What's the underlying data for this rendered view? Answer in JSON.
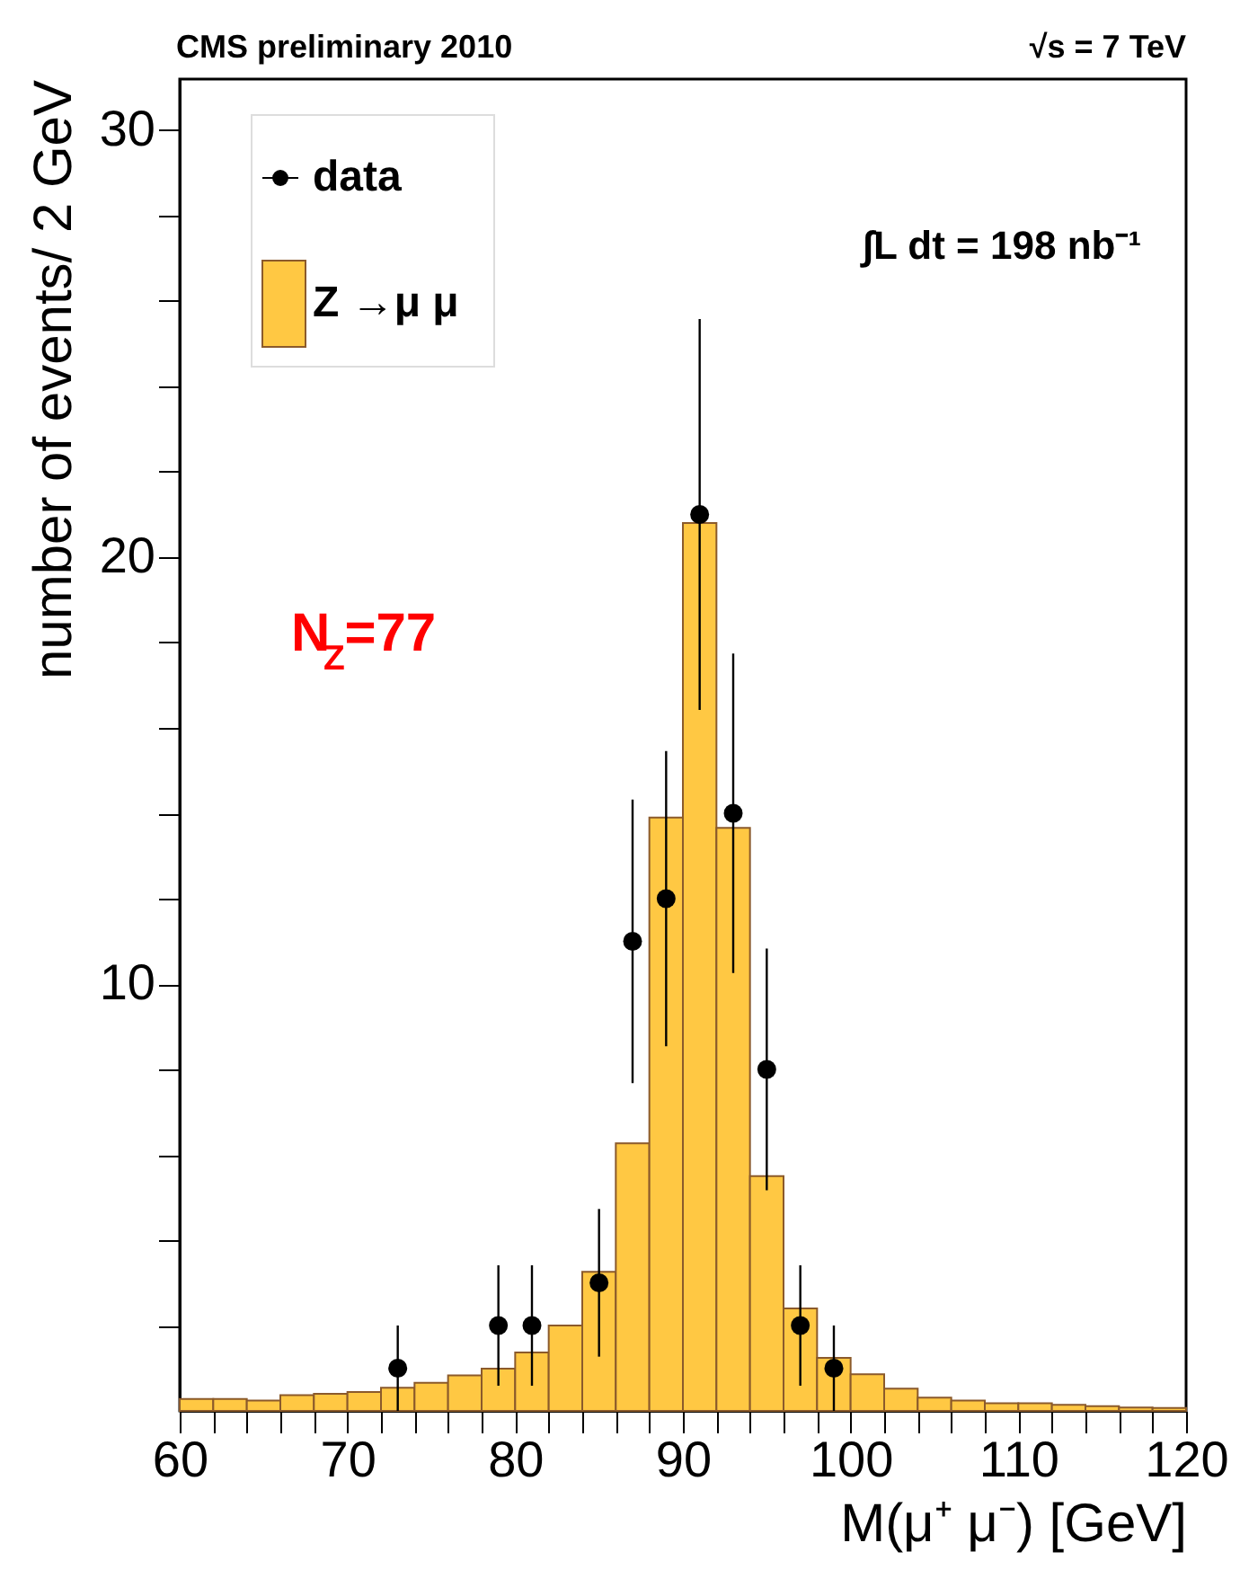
{
  "chart_data": {
    "type": "histogram",
    "title": "CMS preliminary 2010",
    "xlabel": "M(μ⁺ μ⁻) [GeV]",
    "ylabel": "number of events/ 2 GeV",
    "annotations": [
      "√s = 7 TeV",
      "∫L dt = 198 nb⁻¹",
      "N$_{Z}$=77"
    ],
    "bins": [
      60,
      62,
      64,
      66,
      68,
      70,
      72,
      74,
      76,
      78,
      80,
      82,
      84,
      86,
      88,
      90,
      92,
      94,
      96,
      98,
      100,
      102,
      104,
      106,
      108,
      110,
      112,
      114,
      116,
      118,
      120
    ],
    "series": [
      {
        "name": "data",
        "type": "scatter",
        "color": "#000000",
        "x": [
          73,
          79,
          81,
          85,
          87,
          89,
          91,
          93,
          95,
          97,
          99
        ],
        "values": [
          1,
          2,
          2,
          3,
          11,
          12,
          21,
          14,
          8,
          2,
          1
        ],
        "errors": [
          1,
          1.41,
          1.41,
          1.73,
          3.32,
          3.46,
          4.58,
          3.74,
          2.83,
          1.41,
          1
        ]
      },
      {
        "name": "Z →μ μ",
        "color": "#ffc843",
        "values": [
          0.28,
          0.28,
          0.24,
          0.37,
          0.4,
          0.44,
          0.54,
          0.66,
          0.83,
          0.99,
          1.37,
          2.0,
          3.26,
          6.27,
          13.9,
          20.8,
          13.66,
          5.5,
          2.4,
          1.24,
          0.86,
          0.52,
          0.31,
          0.24,
          0.18,
          0.18,
          0.14,
          0.11,
          0.08,
          0.07
        ]
      }
    ],
    "xlim": [
      60,
      120
    ],
    "ylim": [
      0,
      31.2
    ],
    "xticks": [
      60,
      {
        "value": 62,
        "label": null
      },
      {
        "value": 64,
        "label": null
      },
      {
        "value": 66,
        "label": null
      },
      {
        "value": 68,
        "label": null
      },
      70,
      {
        "value": 72,
        "label": null
      },
      {
        "value": 74,
        "label": null
      },
      {
        "value": 76,
        "label": null
      },
      {
        "value": 78,
        "label": null
      },
      80,
      {
        "value": 82,
        "label": null
      },
      {
        "value": 84,
        "label": null
      },
      {
        "value": 86,
        "label": null
      },
      {
        "value": 88,
        "label": null
      },
      90,
      {
        "value": 92,
        "label": null
      },
      {
        "value": 94,
        "label": null
      },
      {
        "value": 96,
        "label": null
      },
      {
        "value": 98,
        "label": null
      },
      100,
      {
        "value": 102,
        "label": null
      },
      {
        "value": 104,
        "label": null
      },
      {
        "value": 106,
        "label": null
      },
      {
        "value": 108,
        "label": null
      },
      110,
      {
        "value": 112,
        "label": null
      },
      {
        "value": 114,
        "label": null
      },
      {
        "value": 116,
        "label": null
      },
      {
        "value": 118,
        "label": null
      },
      120
    ],
    "yticks": [
      {
        "value": 2,
        "label": null
      },
      {
        "value": 4,
        "label": null
      },
      {
        "value": 6,
        "label": null
      },
      {
        "value": 8,
        "label": null
      },
      10,
      {
        "value": 12,
        "label": null
      },
      {
        "value": 14,
        "label": null
      },
      {
        "value": 16,
        "label": null
      },
      {
        "value": 18,
        "label": null
      },
      20,
      {
        "value": 22,
        "label": null
      },
      {
        "value": 24,
        "label": null
      },
      {
        "value": 26,
        "label": null
      },
      {
        "value": 28,
        "label": null
      },
      30
    ],
    "legend": "top left",
    "marker": "circle",
    "grid": false
  }
}
